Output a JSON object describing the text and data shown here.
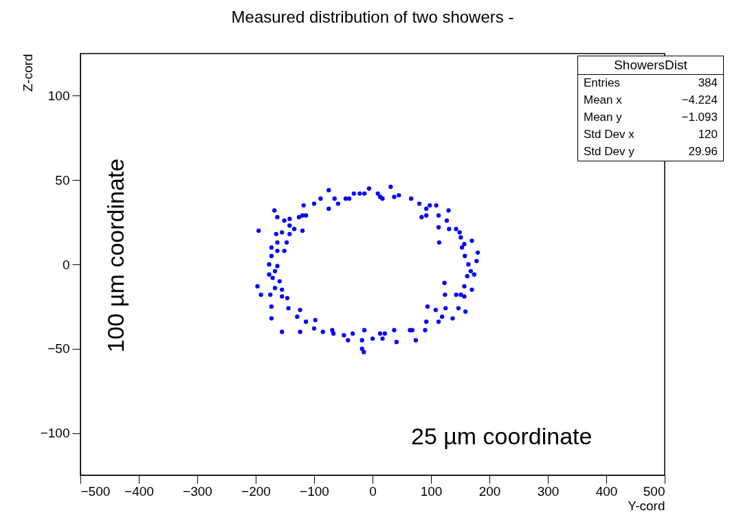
{
  "chart_data": {
    "type": "scatter",
    "title": "Measured distribution of two showers -",
    "xlabel": "Y-cord",
    "ylabel": "Z-cord",
    "annotations": [
      "100 µm coordinate",
      "25 µm coordinate",
      "ShowersDist",
      "Entries 384",
      "Mean x −4.224",
      "Mean y −1.093",
      "Std Dev x 120",
      "Std Dev y 29.96"
    ],
    "xlim": [
      -500,
      500
    ],
    "xticks": [
      -500,
      -400,
      -300,
      -200,
      -100,
      0,
      100,
      200,
      300,
      400,
      500
    ],
    "ylim": [
      -125,
      125
    ],
    "yticks": [
      -100,
      -50,
      0,
      50,
      100
    ],
    "grid": false,
    "marker": "circle",
    "series": [
      {
        "color": "#0000ff",
        "x": [
          -195,
          -168,
          -163,
          -151,
          -142,
          -118,
          -120,
          -120,
          -100,
          -89,
          -75,
          -75,
          -65,
          -46,
          -32,
          -14,
          -6,
          13,
          31,
          37,
          66,
          80,
          98,
          109,
          84,
          92,
          113,
          130,
          113,
          131,
          143,
          151,
          114,
          170,
          153,
          180,
          158,
          178,
          164,
          174,
          162,
          123,
          157,
          170,
          143,
          124,
          157,
          94,
          147,
          125,
          159,
          108,
          137,
          119,
          92,
          90,
          68,
          74,
          37,
          41,
          13,
          17,
          0,
          -14,
          -18,
          -18,
          -15,
          -34,
          -49,
          -69,
          -85,
          -100,
          -98,
          -124,
          -114,
          -129,
          -124,
          -155,
          -173,
          -173,
          -144,
          -146,
          -155,
          -175,
          -191,
          -197,
          -155,
          -167,
          -159,
          -171,
          -177,
          -167,
          -177,
          -163,
          -173,
          -163,
          -151,
          -173,
          -163,
          -147,
          -165,
          -155,
          -142,
          -142,
          -134,
          -126,
          -114,
          -59,
          -40,
          -22,
          9,
          17,
          45,
          92,
          127,
          149,
          157,
          168,
          151,
          113,
          64,
          21,
          -67,
          -42
        ],
        "values": [
          20,
          32,
          28,
          26,
          27,
          35,
          29,
          20,
          36,
          39,
          44,
          33,
          39,
          39,
          42,
          42,
          45,
          40,
          46,
          40,
          39,
          36,
          35,
          35,
          28,
          29,
          29,
          32,
          22,
          21,
          21,
          16,
          13,
          14,
          10,
          7,
          5,
          2,
          0,
          -6,
          -7,
          -11,
          -13,
          -15,
          -18,
          -18,
          -19,
          -25,
          -26,
          -26,
          -28,
          -27,
          -32,
          -31,
          -34,
          -39,
          -39,
          -45,
          -39,
          -46,
          -41,
          -44,
          -44,
          -39,
          -45,
          -50,
          -52,
          -41,
          -42,
          -39,
          -40,
          -38,
          -33,
          -40,
          -34,
          -31,
          -27,
          -40,
          -32,
          -25,
          -26,
          -20,
          -19,
          -18,
          -18,
          -13,
          -15,
          -14,
          -10,
          -8,
          -6,
          -4,
          0,
          -1,
          5,
          8,
          8,
          10,
          13,
          13,
          18,
          19,
          18,
          23,
          21,
          28,
          29,
          36,
          39,
          42,
          42,
          39,
          41,
          33,
          26,
          19,
          12,
          -4,
          -18,
          -34,
          -39,
          -41,
          -41,
          -45
        ]
      }
    ]
  }
}
